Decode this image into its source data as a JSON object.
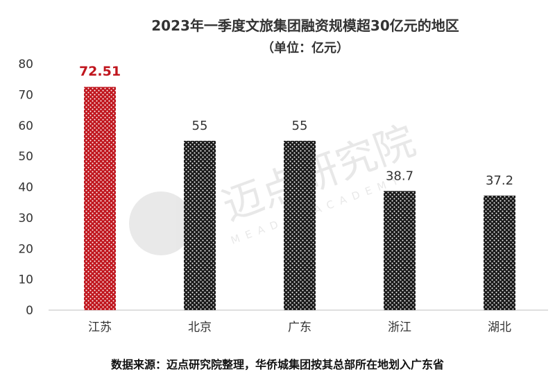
{
  "chart_data": {
    "type": "bar",
    "title": "2023年一季度文旅集团融资规模超30亿元的地区",
    "subtitle": "（单位：亿元）",
    "categories": [
      "江苏",
      "北京",
      "广东",
      "浙江",
      "湖北"
    ],
    "values": [
      72.51,
      55,
      55,
      38.7,
      37.2
    ],
    "data_labels": [
      "72.51",
      "55",
      "55",
      "38.7",
      "37.2"
    ],
    "ylim": [
      0,
      80
    ],
    "y_ticks": [
      0,
      10,
      20,
      30,
      40,
      50,
      60,
      70,
      80
    ],
    "grid": false,
    "highlight_index": 0,
    "colors": {
      "highlight": "#c0161e",
      "highlight_label": "#c0161e",
      "normal": "#1a1a1a",
      "dots": "#ffffff",
      "text": "#333333",
      "axis": "#bfbfbf"
    },
    "watermark": {
      "text": "迈点研究院",
      "subtext": "MEADIN ACADEMY"
    },
    "source_note": "数据来源：迈点研究院整理，华侨城集团按其总部所在地划入广东省"
  }
}
